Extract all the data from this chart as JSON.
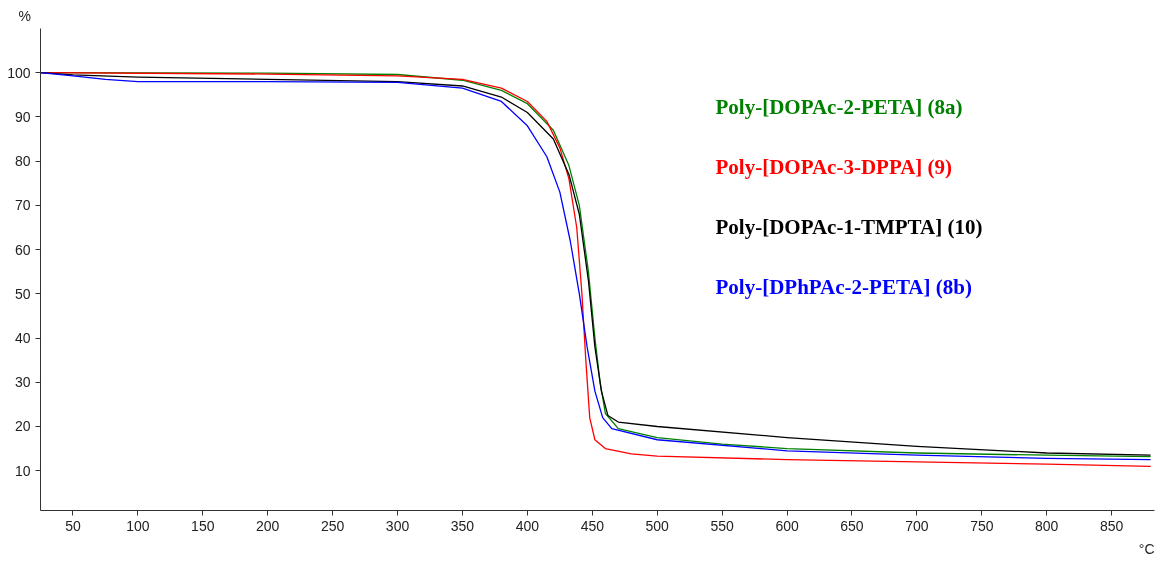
{
  "chart_data": {
    "type": "line",
    "xlabel": "°C",
    "ylabel": "%",
    "xlim": [
      25,
      883
    ],
    "ylim": [
      1,
      110
    ],
    "xticks": [
      50,
      100,
      150,
      200,
      250,
      300,
      350,
      400,
      450,
      500,
      550,
      600,
      650,
      700,
      750,
      800,
      850
    ],
    "yticks": [
      10,
      20,
      30,
      40,
      50,
      60,
      70,
      80,
      90,
      100
    ],
    "grid": false,
    "legend": "top right",
    "marker": "none",
    "line_style": "solid",
    "series": [
      {
        "name": "Poly-[DOPAc-2-PETA]  (8a)",
        "color": "#008000",
        "x": [
          25,
          200,
          300,
          350,
          380,
          400,
          420,
          432,
          440,
          447,
          452,
          456,
          460,
          470,
          500,
          550,
          600,
          700,
          800,
          880
        ],
        "values": [
          100,
          99.9,
          99.6,
          98.3,
          96,
          93,
          87,
          79,
          70,
          55,
          40,
          30,
          23,
          19.5,
          17.5,
          16,
          15,
          14,
          13.5,
          13.2
        ]
      },
      {
        "name": "Poly-[DOPAc-3-DPPA] (9)",
        "color": "#ff0000",
        "x": [
          25,
          200,
          300,
          350,
          380,
          400,
          415,
          425,
          432,
          438,
          442,
          445,
          448,
          452,
          460,
          480,
          500,
          600,
          700,
          800,
          880
        ],
        "values": [
          100,
          99.7,
          99.3,
          98.5,
          96.5,
          93.5,
          89,
          83,
          76,
          65,
          50,
          35,
          22,
          17,
          15,
          13.8,
          13.3,
          12.5,
          12,
          11.5,
          11
        ]
      },
      {
        "name": "Poly-[DOPAc-1-TMPTA]  (10)",
        "color": "#000000",
        "x": [
          25,
          50,
          100,
          200,
          300,
          350,
          380,
          400,
          420,
          432,
          440,
          447,
          452,
          457,
          462,
          470,
          500,
          600,
          700,
          800,
          880
        ],
        "values": [
          100,
          99.5,
          99,
          98.5,
          98,
          97,
          94.5,
          91,
          85,
          77,
          68,
          53,
          38,
          28,
          22.5,
          21,
          20,
          17.5,
          15.5,
          14,
          13.5
        ]
      },
      {
        "name": "Poly-[DPhPAc-2-PETA] (8b)",
        "color": "#0000ff",
        "x": [
          25,
          50,
          75,
          100,
          200,
          300,
          350,
          380,
          400,
          415,
          425,
          433,
          440,
          446,
          452,
          458,
          465,
          500,
          600,
          700,
          800,
          880
        ],
        "values": [
          100,
          99.3,
          98.5,
          98,
          98,
          97.8,
          96.5,
          93.5,
          88,
          81,
          73,
          62,
          50,
          38,
          28,
          22,
          19.5,
          17,
          14.5,
          13.5,
          12.8,
          12.5
        ]
      }
    ]
  }
}
